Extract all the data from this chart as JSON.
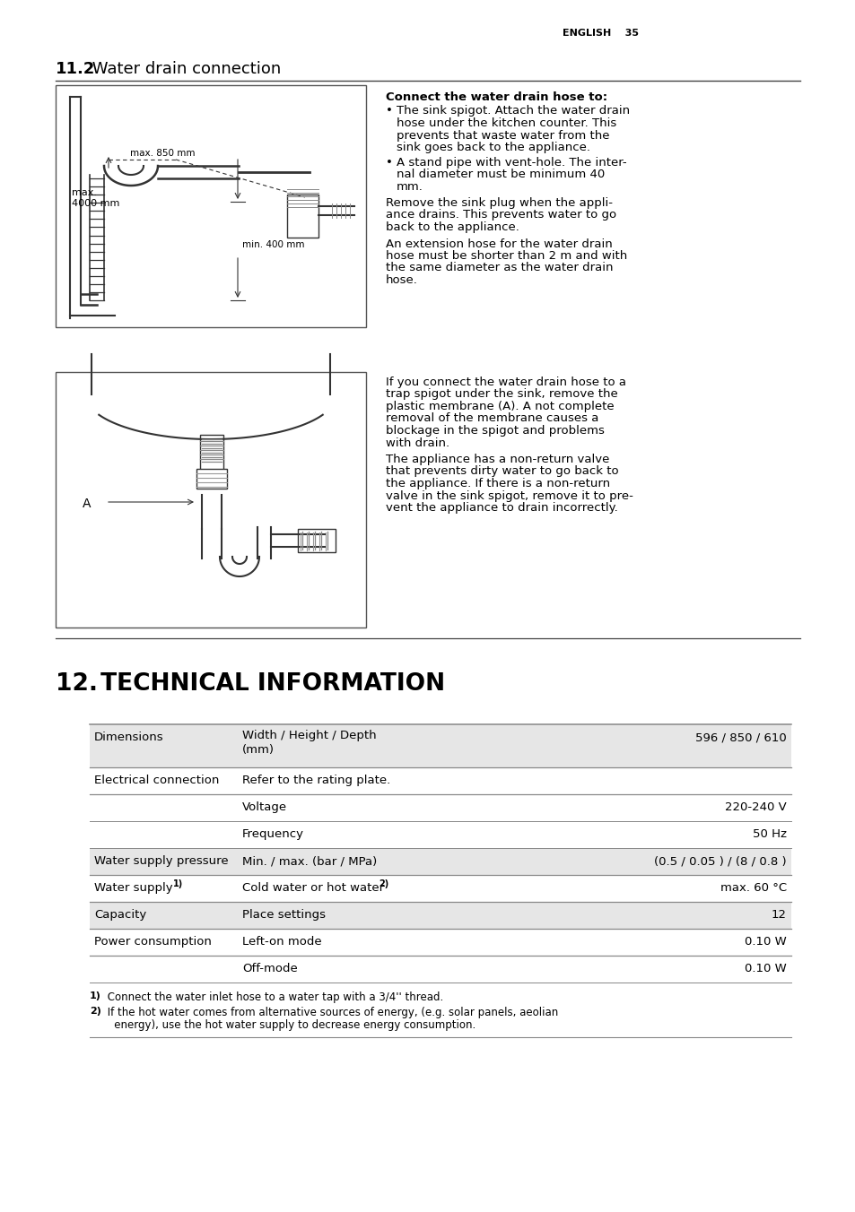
{
  "page_header_right": "ENGLISH    35",
  "section_11_num": "11.2",
  "section_11_text": " Water drain connection",
  "connect_header": "Connect the water drain hose to:",
  "bullet1_lines": [
    "The sink spigot. Attach the water drain",
    "hose under the kitchen counter. This",
    "prevents that waste water from the",
    "sink goes back to the appliance."
  ],
  "bullet2_lines": [
    "A stand pipe with vent-hole. The inter-",
    "nal diameter must be minimum 40",
    "mm."
  ],
  "para1_lines": [
    "Remove the sink plug when the appli-",
    "ance drains. This prevents water to go",
    "back to the appliance."
  ],
  "para2_lines": [
    "An extension hose for the water drain",
    "hose must be shorter than 2 m and with",
    "the same diameter as the water drain",
    "hose."
  ],
  "para3_lines": [
    "If you connect the water drain hose to a",
    "trap spigot under the sink, remove the",
    "plastic membrane (A). A not complete",
    "removal of the membrane causes a",
    "blockage in the spigot and problems",
    "with drain."
  ],
  "para4_lines": [
    "The appliance has a non-return valve",
    "that prevents dirty water to go back to",
    "the appliance. If there is a non-return",
    "valve in the sink spigot, remove it to pre-",
    "vent the appliance to drain incorrectly."
  ],
  "section_12_num": "12.",
  "section_12_text": " TECHNICAL INFORMATION",
  "table_rows": [
    {
      "col1": "Dimensions",
      "col2": "Width / Height / Depth\n(mm)",
      "col3": "596 / 850 / 610",
      "shaded": true
    },
    {
      "col1": "Electrical connection",
      "col2": "Refer to the rating plate.",
      "col3": "",
      "shaded": false
    },
    {
      "col1": "",
      "col2": "Voltage",
      "col3": "220-240 V",
      "shaded": false
    },
    {
      "col1": "",
      "col2": "Frequency",
      "col3": "50 Hz",
      "shaded": false
    },
    {
      "col1": "Water supply pressure",
      "col2": "Min. / max. (bar / MPa)",
      "col3": "(0.5 / 0.05 ) / (8 / 0.8 )",
      "shaded": true
    },
    {
      "col1": "Water supply",
      "col2": "Cold water or hot water",
      "col3": "max. 60 °C",
      "shaded": false
    },
    {
      "col1": "Capacity",
      "col2": "Place settings",
      "col3": "12",
      "shaded": true
    },
    {
      "col1": "Power consumption",
      "col2": "Left-on mode",
      "col3": "0.10 W",
      "shaded": false
    },
    {
      "col1": "",
      "col2": "Off-mode",
      "col3": "0.10 W",
      "shaded": false
    }
  ],
  "fn1_super": "1)",
  "fn1_text": " Connect the water inlet hose to a water tap with a 3/4'' thread.",
  "fn2_super": "2)",
  "fn2_line1": " If the hot water comes from alternative sources of energy, (e.g. solar panels, aeolian",
  "fn2_line2": "   energy), use the hot water supply to decrease energy consumption.",
  "bg": "#ffffff",
  "fg": "#000000",
  "shade": "#e6e6e6",
  "line_col": "#aaaaaa",
  "diag_col": "#333333"
}
